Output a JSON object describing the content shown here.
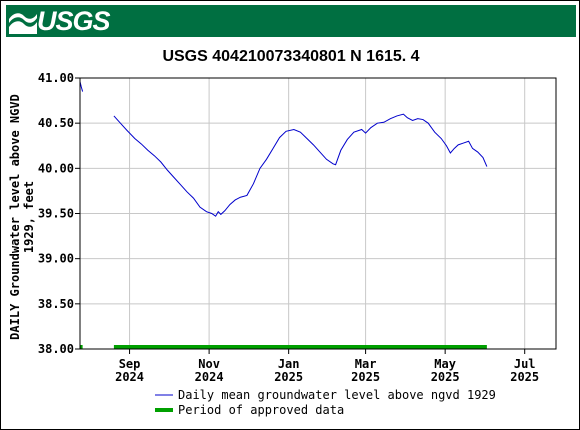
{
  "header": {
    "logo_text": "USGS",
    "logo_icon": "usgs-wave-icon",
    "brand_color": "#006f41"
  },
  "chart_data": {
    "type": "line",
    "title": "USGS 404210073340801 N  1615. 4",
    "ylabel": "DAILY Groundwater level above NGVD 1929, feet",
    "ylabel_lines": [
      "DAILY Groundwater level above NGVD",
      "1929, feet"
    ],
    "ylim": [
      38.0,
      41.0
    ],
    "yticks": [
      41.0,
      40.5,
      40.0,
      39.5,
      39.0,
      38.5,
      38.0
    ],
    "ytick_labels": [
      "41.00",
      "40.50",
      "40.00",
      "39.50",
      "39.00",
      "38.50",
      "38.00"
    ],
    "xlim": [
      "2024-07-25",
      "2025-07-25"
    ],
    "xticks": [
      {
        "date": "2024-09-01",
        "line1": "Sep",
        "line2": "2024"
      },
      {
        "date": "2024-11-01",
        "line1": "Nov",
        "line2": "2024"
      },
      {
        "date": "2025-01-01",
        "line1": "Jan",
        "line2": "2025"
      },
      {
        "date": "2025-03-01",
        "line1": "Mar",
        "line2": "2025"
      },
      {
        "date": "2025-05-01",
        "line1": "May",
        "line2": "2025"
      },
      {
        "date": "2025-07-01",
        "line1": "Jul",
        "line2": "2025"
      }
    ],
    "grid": true,
    "series": [
      {
        "name": "Daily mean groundwater level above ngvd 1929",
        "color": "#0000cc",
        "segments": [
          [
            [
              "2024-07-25",
              40.96
            ],
            [
              "2024-07-26",
              40.9
            ],
            [
              "2024-07-27",
              40.85
            ]
          ],
          [
            [
              "2024-08-20",
              40.58
            ],
            [
              "2024-08-25",
              40.5
            ],
            [
              "2024-08-30",
              40.42
            ],
            [
              "2024-09-05",
              40.33
            ],
            [
              "2024-09-10",
              40.27
            ],
            [
              "2024-09-15",
              40.2
            ],
            [
              "2024-09-20",
              40.14
            ],
            [
              "2024-09-25",
              40.07
            ],
            [
              "2024-09-30",
              39.98
            ],
            [
              "2024-10-05",
              39.9
            ],
            [
              "2024-10-10",
              39.82
            ],
            [
              "2024-10-15",
              39.74
            ],
            [
              "2024-10-20",
              39.67
            ],
            [
              "2024-10-25",
              39.57
            ],
            [
              "2024-10-30",
              39.52
            ],
            [
              "2024-11-03",
              39.5
            ],
            [
              "2024-11-06",
              39.47
            ],
            [
              "2024-11-08",
              39.52
            ],
            [
              "2024-11-10",
              39.49
            ],
            [
              "2024-11-13",
              39.53
            ],
            [
              "2024-11-17",
              39.6
            ],
            [
              "2024-11-21",
              39.65
            ],
            [
              "2024-11-25",
              39.68
            ],
            [
              "2024-11-30",
              39.7
            ],
            [
              "2024-12-05",
              39.83
            ],
            [
              "2024-12-10",
              40.0
            ],
            [
              "2024-12-15",
              40.1
            ],
            [
              "2024-12-20",
              40.22
            ],
            [
              "2024-12-25",
              40.34
            ],
            [
              "2024-12-30",
              40.41
            ],
            [
              "2025-01-05",
              40.43
            ],
            [
              "2025-01-10",
              40.4
            ],
            [
              "2025-01-15",
              40.33
            ],
            [
              "2025-01-20",
              40.26
            ],
            [
              "2025-01-25",
              40.18
            ],
            [
              "2025-01-30",
              40.1
            ],
            [
              "2025-02-04",
              40.05
            ],
            [
              "2025-02-06",
              40.04
            ],
            [
              "2025-02-10",
              40.2
            ],
            [
              "2025-02-15",
              40.32
            ],
            [
              "2025-02-20",
              40.4
            ],
            [
              "2025-02-26",
              40.43
            ],
            [
              "2025-03-01",
              40.39
            ],
            [
              "2025-03-05",
              40.45
            ],
            [
              "2025-03-10",
              40.5
            ],
            [
              "2025-03-15",
              40.51
            ],
            [
              "2025-03-20",
              40.55
            ],
            [
              "2025-03-25",
              40.58
            ],
            [
              "2025-03-30",
              40.6
            ],
            [
              "2025-04-02",
              40.56
            ],
            [
              "2025-04-06",
              40.53
            ],
            [
              "2025-04-10",
              40.55
            ],
            [
              "2025-04-14",
              40.54
            ],
            [
              "2025-04-18",
              40.5
            ],
            [
              "2025-04-23",
              40.4
            ],
            [
              "2025-04-28",
              40.33
            ],
            [
              "2025-05-02",
              40.25
            ],
            [
              "2025-05-05",
              40.17
            ],
            [
              "2025-05-08",
              40.22
            ],
            [
              "2025-05-11",
              40.26
            ],
            [
              "2025-05-15",
              40.28
            ],
            [
              "2025-05-19",
              40.3
            ],
            [
              "2025-05-22",
              40.22
            ],
            [
              "2025-05-26",
              40.18
            ],
            [
              "2025-05-30",
              40.12
            ],
            [
              "2025-06-02",
              40.02
            ]
          ]
        ]
      },
      {
        "name": "Period of approved data",
        "color": "#00a000",
        "periods": [
          [
            "2024-07-25",
            "2024-07-27"
          ],
          [
            "2024-08-20",
            "2025-06-02"
          ]
        ]
      }
    ],
    "legend_position": "bottom"
  }
}
